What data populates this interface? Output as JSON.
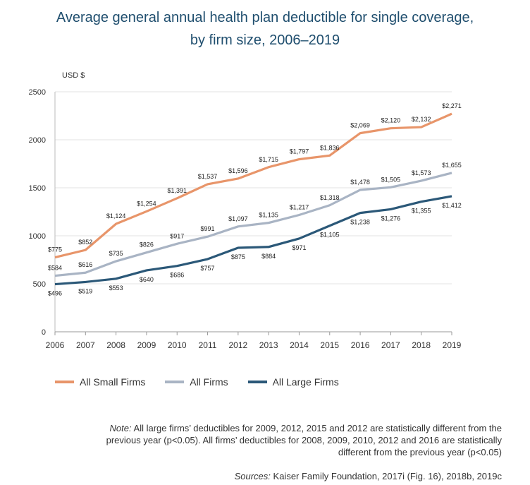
{
  "title_line1": "Average general annual health plan deductible for single coverage,",
  "title_line2": "by firm size, 2006–2019",
  "note_label": "Note:",
  "note_text": "All large firms’ deductibles for 2009, 2012, 2015 and 2012 are statistically different from the previous year (p<0.05). All firms’ deductibles for 2008, 2009, 2010, 2012 and 2016 are statistically different from the previous year (p<0.05)",
  "sources_label": "Sources:",
  "sources_text": "Kaiser Family Foundation, 2017i (Fig. 16), 2018b, 2019c",
  "chart_data": {
    "type": "line",
    "ylabel": "USD $",
    "ylim": [
      0,
      2500
    ],
    "yticks": [
      0,
      500,
      1000,
      1500,
      2000,
      2500
    ],
    "grid": "horizontal",
    "legend_position": "bottom",
    "x": [
      2006,
      2007,
      2008,
      2009,
      2010,
      2011,
      2012,
      2013,
      2014,
      2015,
      2016,
      2017,
      2018,
      2019
    ],
    "series": [
      {
        "name": "All Small Firms",
        "color": "#e8956a",
        "values": [
          775,
          852,
          1124,
          1254,
          1391,
          1537,
          1596,
          1715,
          1797,
          1836,
          2069,
          2120,
          2132,
          2271
        ],
        "labels": [
          "$775",
          "$852",
          "$1,124",
          "$1,254",
          "$1,391",
          "$1,537",
          "$1,596",
          "$1,715",
          "$1,797",
          "$1,836",
          "$2,069",
          "$2,120",
          "$2,132",
          "$2,271"
        ]
      },
      {
        "name": "All Firms",
        "color": "#a9b4c4",
        "values": [
          584,
          616,
          735,
          826,
          917,
          991,
          1097,
          1135,
          1217,
          1318,
          1478,
          1505,
          1573,
          1655
        ],
        "labels": [
          "$584",
          "$616",
          "$735",
          "$826",
          "$917",
          "$991",
          "$1,097",
          "$1,135",
          "$1,217",
          "$1,318",
          "$1,478",
          "$1,505",
          "$1,573",
          "$1,655"
        ]
      },
      {
        "name": "All Large Firms",
        "color": "#2b5878",
        "values": [
          496,
          519,
          553,
          640,
          686,
          757,
          875,
          884,
          971,
          1105,
          1238,
          1276,
          1355,
          1412
        ],
        "labels": [
          "$496",
          "$519",
          "$553",
          "$640",
          "$686",
          "$757",
          "$875",
          "$884",
          "$971",
          "$1,105",
          "$1,238",
          "$1,276",
          "$1,355",
          "$1,412"
        ]
      }
    ]
  }
}
